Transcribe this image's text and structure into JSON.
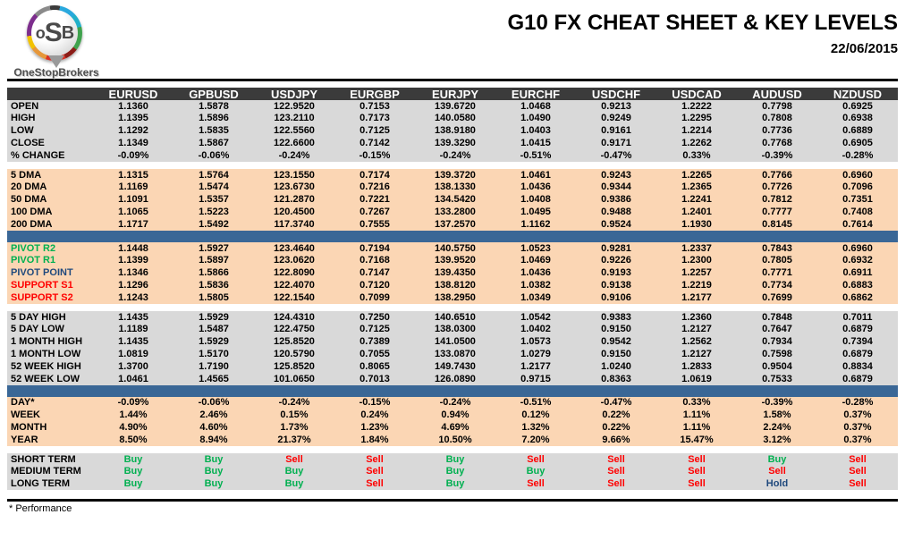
{
  "header": {
    "logo_text_o": "o",
    "logo_text_s": "S",
    "logo_text_b": "B",
    "logo_name": "OneStopBrokers",
    "title": "G10 FX CHEAT SHEET & KEY LEVELS",
    "date": "22/06/2015"
  },
  "colors": {
    "header_bar": "#3b3b3b",
    "section_gray": "#d9d9d9",
    "section_peach": "#fbd6b4",
    "divider_blue": "#3a6796",
    "buy_green": "#00b050",
    "sell_red": "#ff0000",
    "navy_blue": "#1f497d"
  },
  "table": {
    "columns": [
      "EURUSD",
      "GPBUSD",
      "USDJPY",
      "EURGBP",
      "EURJPY",
      "EURCHF",
      "USDCHF",
      "USDCAD",
      "AUDUSD",
      "NZDUSD"
    ],
    "sections": [
      {
        "type": "rows",
        "bg": "gray",
        "name": "ohlc",
        "rows": [
          {
            "label": "OPEN",
            "values": [
              "1.1360",
              "1.5878",
              "122.9520",
              "0.7153",
              "139.6720",
              "1.0468",
              "0.9213",
              "1.2222",
              "0.7798",
              "0.6925"
            ]
          },
          {
            "label": "HIGH",
            "values": [
              "1.1395",
              "1.5896",
              "123.2110",
              "0.7173",
              "140.0580",
              "1.0490",
              "0.9249",
              "1.2295",
              "0.7808",
              "0.6938"
            ]
          },
          {
            "label": "LOW",
            "values": [
              "1.1292",
              "1.5835",
              "122.5560",
              "0.7125",
              "138.9180",
              "1.0403",
              "0.9161",
              "1.2214",
              "0.7736",
              "0.6889"
            ]
          },
          {
            "label": "CLOSE",
            "values": [
              "1.1349",
              "1.5867",
              "122.6600",
              "0.7142",
              "139.3290",
              "1.0415",
              "0.9171",
              "1.2262",
              "0.7768",
              "0.6905"
            ]
          },
          {
            "label": "% CHANGE",
            "values": [
              "-0.09%",
              "-0.06%",
              "-0.24%",
              "-0.15%",
              "-0.24%",
              "-0.51%",
              "-0.47%",
              "0.33%",
              "-0.39%",
              "-0.28%"
            ]
          }
        ]
      },
      {
        "type": "gap"
      },
      {
        "type": "rows",
        "bg": "peach",
        "name": "moving-averages",
        "rows": [
          {
            "label": "5 DMA",
            "values": [
              "1.1315",
              "1.5764",
              "123.1550",
              "0.7174",
              "139.3720",
              "1.0461",
              "0.9243",
              "1.2265",
              "0.7766",
              "0.6960"
            ]
          },
          {
            "label": "20 DMA",
            "values": [
              "1.1169",
              "1.5474",
              "123.6730",
              "0.7216",
              "138.1330",
              "1.0436",
              "0.9344",
              "1.2365",
              "0.7726",
              "0.7096"
            ]
          },
          {
            "label": "50 DMA",
            "values": [
              "1.1091",
              "1.5357",
              "121.2870",
              "0.7221",
              "134.5420",
              "1.0408",
              "0.9386",
              "1.2241",
              "0.7812",
              "0.7351"
            ]
          },
          {
            "label": "100 DMA",
            "values": [
              "1.1065",
              "1.5223",
              "120.4500",
              "0.7267",
              "133.2800",
              "1.0495",
              "0.9488",
              "1.2401",
              "0.7777",
              "0.7408"
            ]
          },
          {
            "label": "200 DMA",
            "values": [
              "1.1717",
              "1.5492",
              "117.3740",
              "0.7555",
              "137.2570",
              "1.1162",
              "0.9524",
              "1.1930",
              "0.8145",
              "0.7614"
            ]
          }
        ]
      },
      {
        "type": "blue"
      },
      {
        "type": "rows",
        "bg": "peach",
        "name": "pivots",
        "rows": [
          {
            "label": "PIVOT R2",
            "label_color": "green",
            "values": [
              "1.1448",
              "1.5927",
              "123.4640",
              "0.7194",
              "140.5750",
              "1.0523",
              "0.9281",
              "1.2337",
              "0.7843",
              "0.6960"
            ]
          },
          {
            "label": "PIVOT R1",
            "label_color": "green",
            "values": [
              "1.1399",
              "1.5897",
              "123.0620",
              "0.7168",
              "139.9520",
              "1.0469",
              "0.9226",
              "1.2300",
              "0.7805",
              "0.6932"
            ]
          },
          {
            "label": "PIVOT POINT",
            "label_color": "navy",
            "values": [
              "1.1346",
              "1.5866",
              "122.8090",
              "0.7147",
              "139.4350",
              "1.0436",
              "0.9193",
              "1.2257",
              "0.7771",
              "0.6911"
            ]
          },
          {
            "label": "SUPPORT S1",
            "label_color": "red",
            "values": [
              "1.1296",
              "1.5836",
              "122.4070",
              "0.7120",
              "138.8120",
              "1.0382",
              "0.9138",
              "1.2219",
              "0.7734",
              "0.6883"
            ]
          },
          {
            "label": "SUPPORT S2",
            "label_color": "red",
            "values": [
              "1.1243",
              "1.5805",
              "122.1540",
              "0.7099",
              "138.2950",
              "1.0349",
              "0.9106",
              "1.2177",
              "0.7699",
              "0.6862"
            ]
          }
        ]
      },
      {
        "type": "gap"
      },
      {
        "type": "rows",
        "bg": "gray",
        "name": "ranges",
        "rows": [
          {
            "label": "5 DAY HIGH",
            "values": [
              "1.1435",
              "1.5929",
              "124.4310",
              "0.7250",
              "140.6510",
              "1.0542",
              "0.9383",
              "1.2360",
              "0.7848",
              "0.7011"
            ]
          },
          {
            "label": "5 DAY LOW",
            "values": [
              "1.1189",
              "1.5487",
              "122.4750",
              "0.7125",
              "138.0300",
              "1.0402",
              "0.9150",
              "1.2127",
              "0.7647",
              "0.6879"
            ]
          },
          {
            "label": "1 MONTH HIGH",
            "values": [
              "1.1435",
              "1.5929",
              "125.8520",
              "0.7389",
              "141.0500",
              "1.0573",
              "0.9542",
              "1.2562",
              "0.7934",
              "0.7394"
            ]
          },
          {
            "label": "1 MONTH LOW",
            "values": [
              "1.0819",
              "1.5170",
              "120.5790",
              "0.7055",
              "133.0870",
              "1.0279",
              "0.9150",
              "1.2127",
              "0.7598",
              "0.6879"
            ]
          },
          {
            "label": "52 WEEK HIGH",
            "values": [
              "1.3700",
              "1.7190",
              "125.8520",
              "0.8065",
              "149.7430",
              "1.2177",
              "1.0240",
              "1.2833",
              "0.9504",
              "0.8834"
            ]
          },
          {
            "label": "52 WEEK LOW",
            "values": [
              "1.0461",
              "1.4565",
              "101.0650",
              "0.7013",
              "126.0890",
              "0.9715",
              "0.8363",
              "1.0619",
              "0.7533",
              "0.6879"
            ]
          }
        ]
      },
      {
        "type": "blue"
      },
      {
        "type": "rows",
        "bg": "peach",
        "name": "performance",
        "rows": [
          {
            "label": "DAY*",
            "values": [
              "-0.09%",
              "-0.06%",
              "-0.24%",
              "-0.15%",
              "-0.24%",
              "-0.51%",
              "-0.47%",
              "0.33%",
              "-0.39%",
              "-0.28%"
            ]
          },
          {
            "label": "WEEK",
            "values": [
              "1.44%",
              "2.46%",
              "0.15%",
              "0.24%",
              "0.94%",
              "0.12%",
              "0.22%",
              "1.11%",
              "1.58%",
              "0.37%"
            ]
          },
          {
            "label": "MONTH",
            "values": [
              "4.90%",
              "4.60%",
              "1.73%",
              "1.23%",
              "4.69%",
              "1.32%",
              "0.22%",
              "1.11%",
              "2.24%",
              "0.37%"
            ]
          },
          {
            "label": "YEAR",
            "values": [
              "8.50%",
              "8.94%",
              "21.37%",
              "1.84%",
              "10.50%",
              "7.20%",
              "9.66%",
              "15.47%",
              "3.12%",
              "0.37%"
            ]
          }
        ]
      },
      {
        "type": "gap"
      },
      {
        "type": "rows",
        "bg": "gray",
        "name": "signals",
        "signals": true,
        "rows": [
          {
            "label": "SHORT TERM",
            "values": [
              "Buy",
              "Buy",
              "Sell",
              "Sell",
              "Buy",
              "Sell",
              "Sell",
              "Sell",
              "Buy",
              "Sell"
            ]
          },
          {
            "label": "MEDIUM TERM",
            "values": [
              "Buy",
              "Buy",
              "Buy",
              "Sell",
              "Buy",
              "Buy",
              "Sell",
              "Sell",
              "Sell",
              "Sell"
            ]
          },
          {
            "label": "LONG TERM",
            "values": [
              "Buy",
              "Buy",
              "Buy",
              "Sell",
              "Buy",
              "Sell",
              "Sell",
              "Sell",
              "Hold",
              "Sell"
            ]
          }
        ]
      }
    ]
  },
  "footer": {
    "note": "* Performance"
  }
}
